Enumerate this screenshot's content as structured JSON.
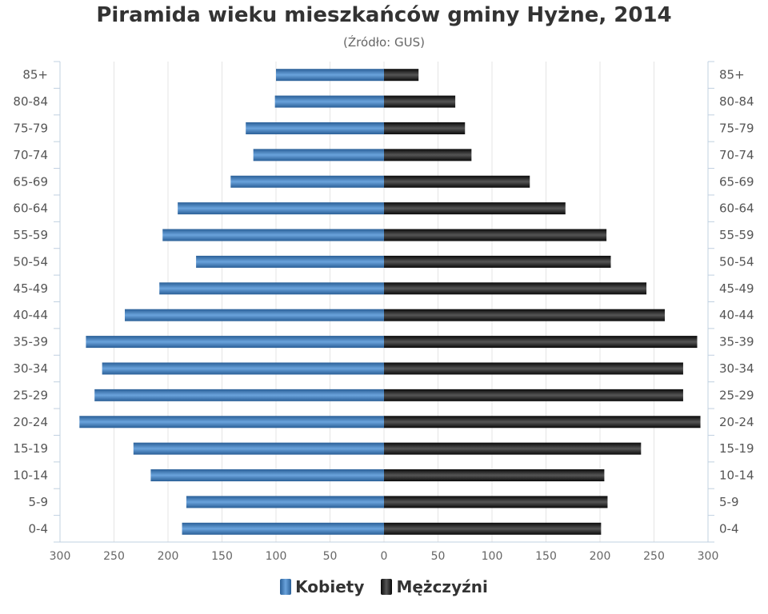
{
  "chart_data": {
    "type": "bar",
    "title": "Piramida wieku mieszkańców gminy Hyżne, 2014",
    "subtitle": "(Źródło: GUS)",
    "categories": [
      "85+",
      "80-84",
      "75-79",
      "70-74",
      "65-69",
      "60-64",
      "55-59",
      "50-54",
      "45-49",
      "40-44",
      "35-39",
      "30-34",
      "25-29",
      "20-24",
      "15-19",
      "10-14",
      "5-9",
      "0-4"
    ],
    "series": [
      {
        "name": "Kobiety",
        "color": "#3d7ebf",
        "values": [
          100,
          101,
          128,
          121,
          142,
          191,
          205,
          174,
          208,
          240,
          276,
          261,
          268,
          282,
          232,
          216,
          183,
          187
        ]
      },
      {
        "name": "Mężczyźni",
        "color": "#1a1a1a",
        "values": [
          32,
          66,
          75,
          81,
          135,
          168,
          206,
          210,
          243,
          260,
          290,
          277,
          277,
          293,
          238,
          204,
          207,
          201
        ]
      }
    ],
    "xlim": [
      -300,
      300
    ],
    "x_ticks": [
      "300",
      "250",
      "200",
      "150",
      "100",
      "50",
      "0",
      "50",
      "100",
      "150",
      "200",
      "250",
      "300"
    ],
    "grid": true,
    "legend_position": "bottom"
  }
}
